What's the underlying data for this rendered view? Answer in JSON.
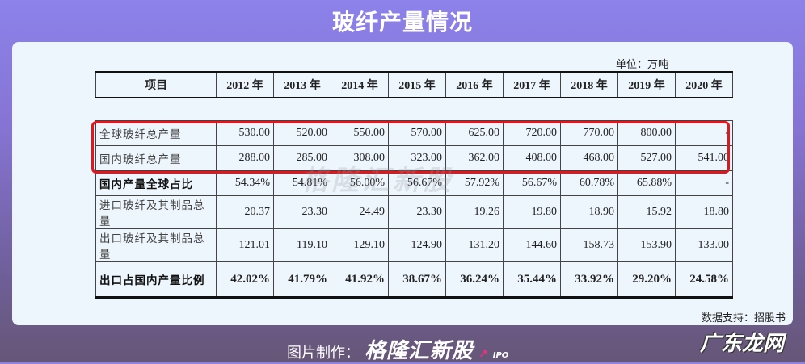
{
  "title": "玻纤产量情况",
  "unit": "单位：万吨",
  "table": {
    "headers": [
      "项目",
      "2012 年",
      "2013 年",
      "2014 年",
      "2015 年",
      "2016 年",
      "2017 年",
      "2018 年",
      "2019 年",
      "2020 年"
    ],
    "rows": [
      {
        "label": "全球玻纤总产量",
        "values": [
          "530.00",
          "520.00",
          "550.00",
          "570.00",
          "625.00",
          "720.00",
          "770.00",
          "800.00",
          "-"
        ]
      },
      {
        "label": "国内玻纤总产量",
        "values": [
          "288.00",
          "285.00",
          "308.00",
          "323.00",
          "362.00",
          "408.00",
          "468.00",
          "527.00",
          "541.00"
        ]
      },
      {
        "label": "国内产量全球占比",
        "values": [
          "54.34%",
          "54.81%",
          "56.00%",
          "56.67%",
          "57.92%",
          "56.67%",
          "60.78%",
          "65.88%",
          "-"
        ]
      },
      {
        "label": "进口玻纤及其制品总量",
        "values": [
          "20.37",
          "23.30",
          "24.49",
          "23.30",
          "19.26",
          "19.80",
          "18.90",
          "15.92",
          "18.80"
        ]
      },
      {
        "label": "出口玻纤及其制品总量",
        "values": [
          "121.01",
          "119.10",
          "129.10",
          "124.90",
          "131.20",
          "144.60",
          "158.73",
          "153.90",
          "133.00"
        ]
      },
      {
        "label": "出口占国内产量比例",
        "values": [
          "42.02%",
          "41.79%",
          "41.92%",
          "38.67%",
          "36.24%",
          "35.44%",
          "33.92%",
          "29.20%",
          "24.58%"
        ]
      }
    ]
  },
  "highlight_color": "#e5161b",
  "watermark": "格隆汇新股",
  "source": "数据支持：招股书",
  "footer": {
    "credit_label": "图片制作：",
    "brand": "格隆汇新股",
    "brand_suffix": "IPO",
    "site": "广东龙网"
  }
}
